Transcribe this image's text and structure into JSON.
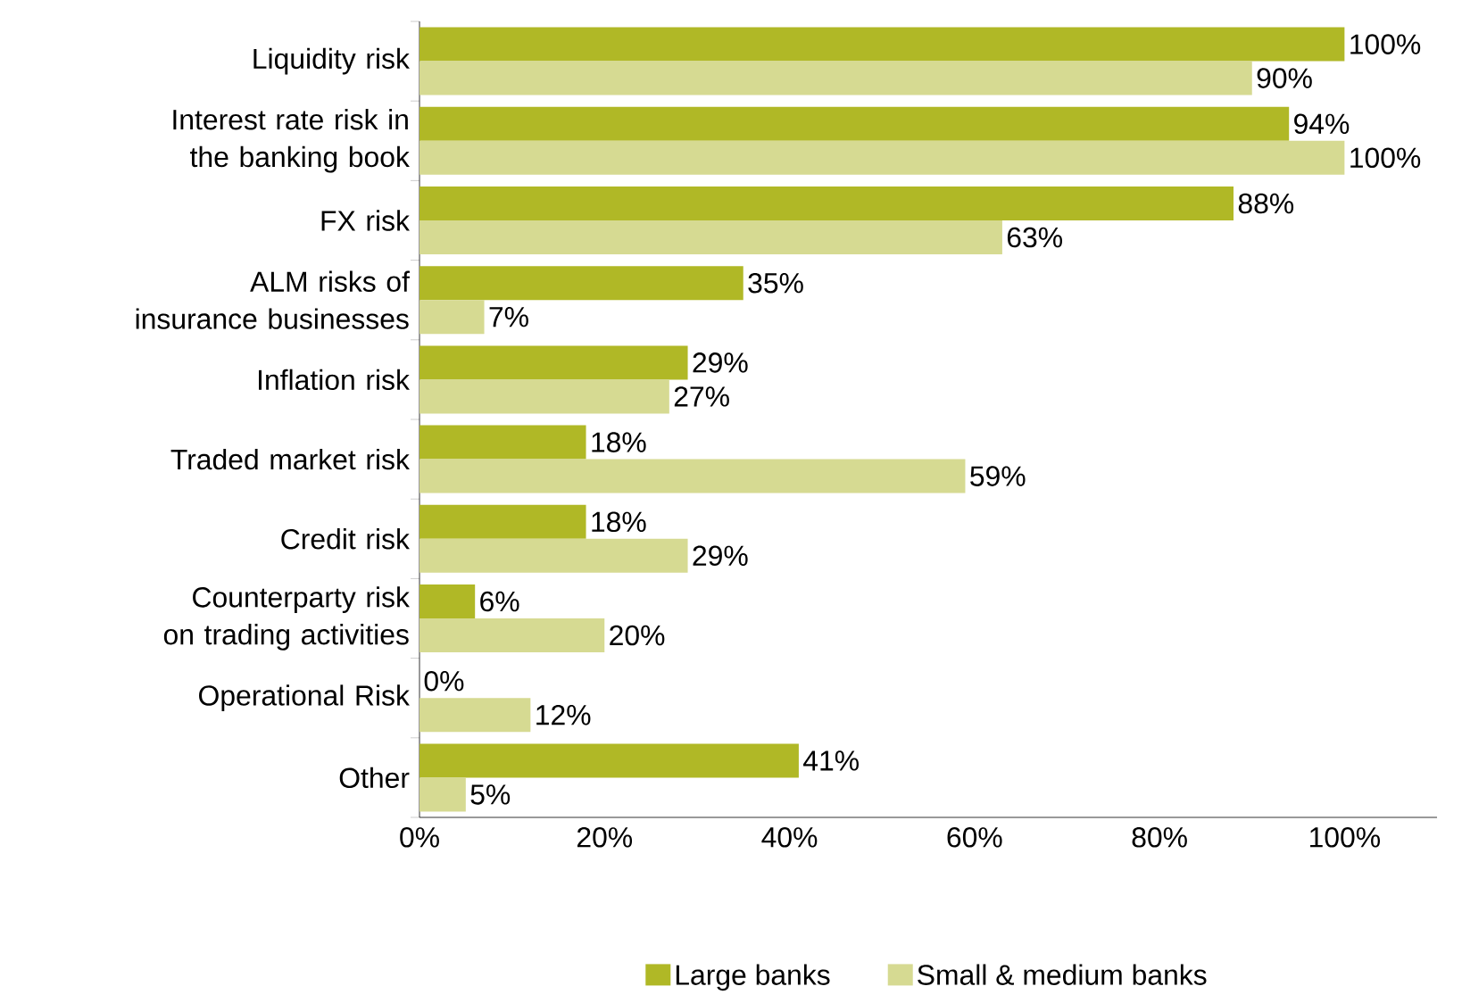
{
  "chart_data": {
    "type": "bar",
    "orientation": "horizontal",
    "categories": [
      "Liquidity risk",
      "Interest rate risk in the banking book",
      "FX risk",
      "ALM risks of insurance businesses",
      "Inflation risk",
      "Traded market risk",
      "Credit risk",
      "Counterparty risk on trading activities",
      "Operational Risk",
      "Other"
    ],
    "series": [
      {
        "name": "Large banks",
        "color": "#b0b826",
        "values": [
          100,
          94,
          88,
          35,
          29,
          18,
          18,
          6,
          0,
          41
        ],
        "value_labels": [
          "100%",
          "94%",
          "88%",
          "35%",
          "29%",
          "18%",
          "18%",
          "6%",
          "0%",
          "41%"
        ]
      },
      {
        "name": "Small & medium banks",
        "color": "#d6da92",
        "values": [
          90,
          100,
          63,
          7,
          27,
          59,
          29,
          20,
          12,
          5
        ],
        "value_labels": [
          "90%",
          "100%",
          "63%",
          "7%",
          "27%",
          "59%",
          "29%",
          "20%",
          "12%",
          "5%"
        ]
      }
    ],
    "xlim": [
      0,
      110
    ],
    "xticks": [
      {
        "value": 0,
        "label": "0%"
      },
      {
        "value": 20,
        "label": "20%"
      },
      {
        "value": 40,
        "label": "40%"
      },
      {
        "value": 60,
        "label": "60%"
      },
      {
        "value": 80,
        "label": "80%"
      },
      {
        "value": 100,
        "label": "100%"
      }
    ],
    "legend": "bottom",
    "grid": false
  }
}
